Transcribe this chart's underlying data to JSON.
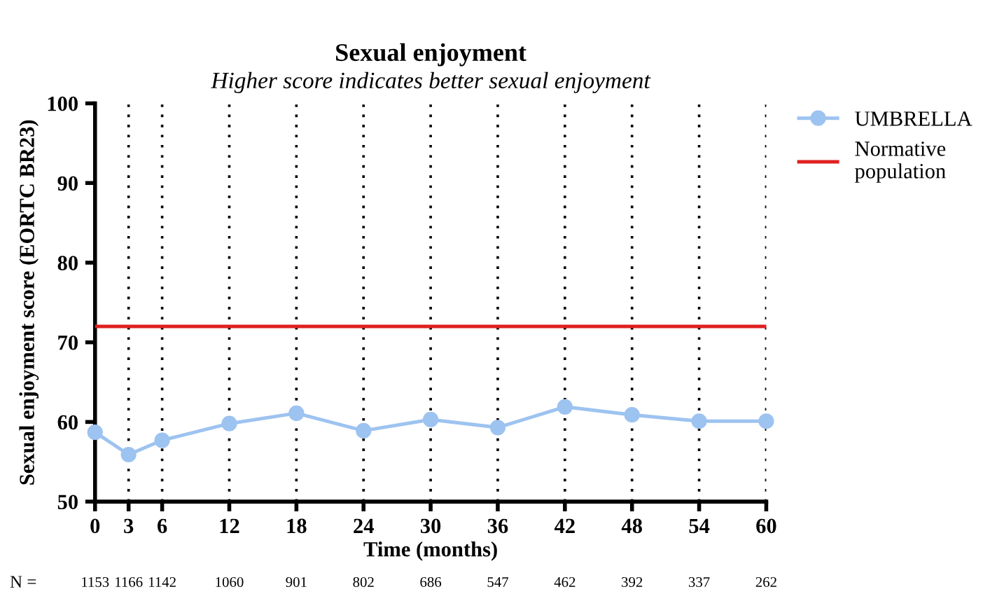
{
  "chart_data": {
    "type": "line",
    "title": "Sexual enjoyment",
    "subtitle": "Higher score indicates better sexual enjoyment",
    "xlabel": "Time (months)",
    "ylabel": "Sexual enjoyment score (EORTC BR23)",
    "x": [
      0,
      3,
      6,
      12,
      18,
      24,
      30,
      36,
      42,
      48,
      54,
      60
    ],
    "series": [
      {
        "name": "UMBRELLA",
        "color": "#9dc3f0",
        "values": [
          58.7,
          55.9,
          57.7,
          59.8,
          61.1,
          58.9,
          60.3,
          59.3,
          61.9,
          60.9,
          60.1,
          60.1
        ]
      }
    ],
    "ref_lines": [
      {
        "axis": "y",
        "value": 72,
        "label": "Normative population",
        "color": "#e02020",
        "line_style": "solid"
      }
    ],
    "xlim": [
      0,
      60
    ],
    "xticks": [
      0,
      3,
      6,
      12,
      18,
      24,
      30,
      36,
      42,
      48,
      54,
      60
    ],
    "ylim": [
      50,
      100
    ],
    "yticks": [
      50,
      60,
      70,
      80,
      90,
      100
    ],
    "grid": "x",
    "legend": "top right",
    "marker": "circle",
    "line_style": "solid",
    "annotations": [
      "N =",
      "1153",
      "1166",
      "1142",
      "1060",
      "901",
      "802",
      "686",
      "547",
      "462",
      "392",
      "337",
      "262"
    ]
  }
}
